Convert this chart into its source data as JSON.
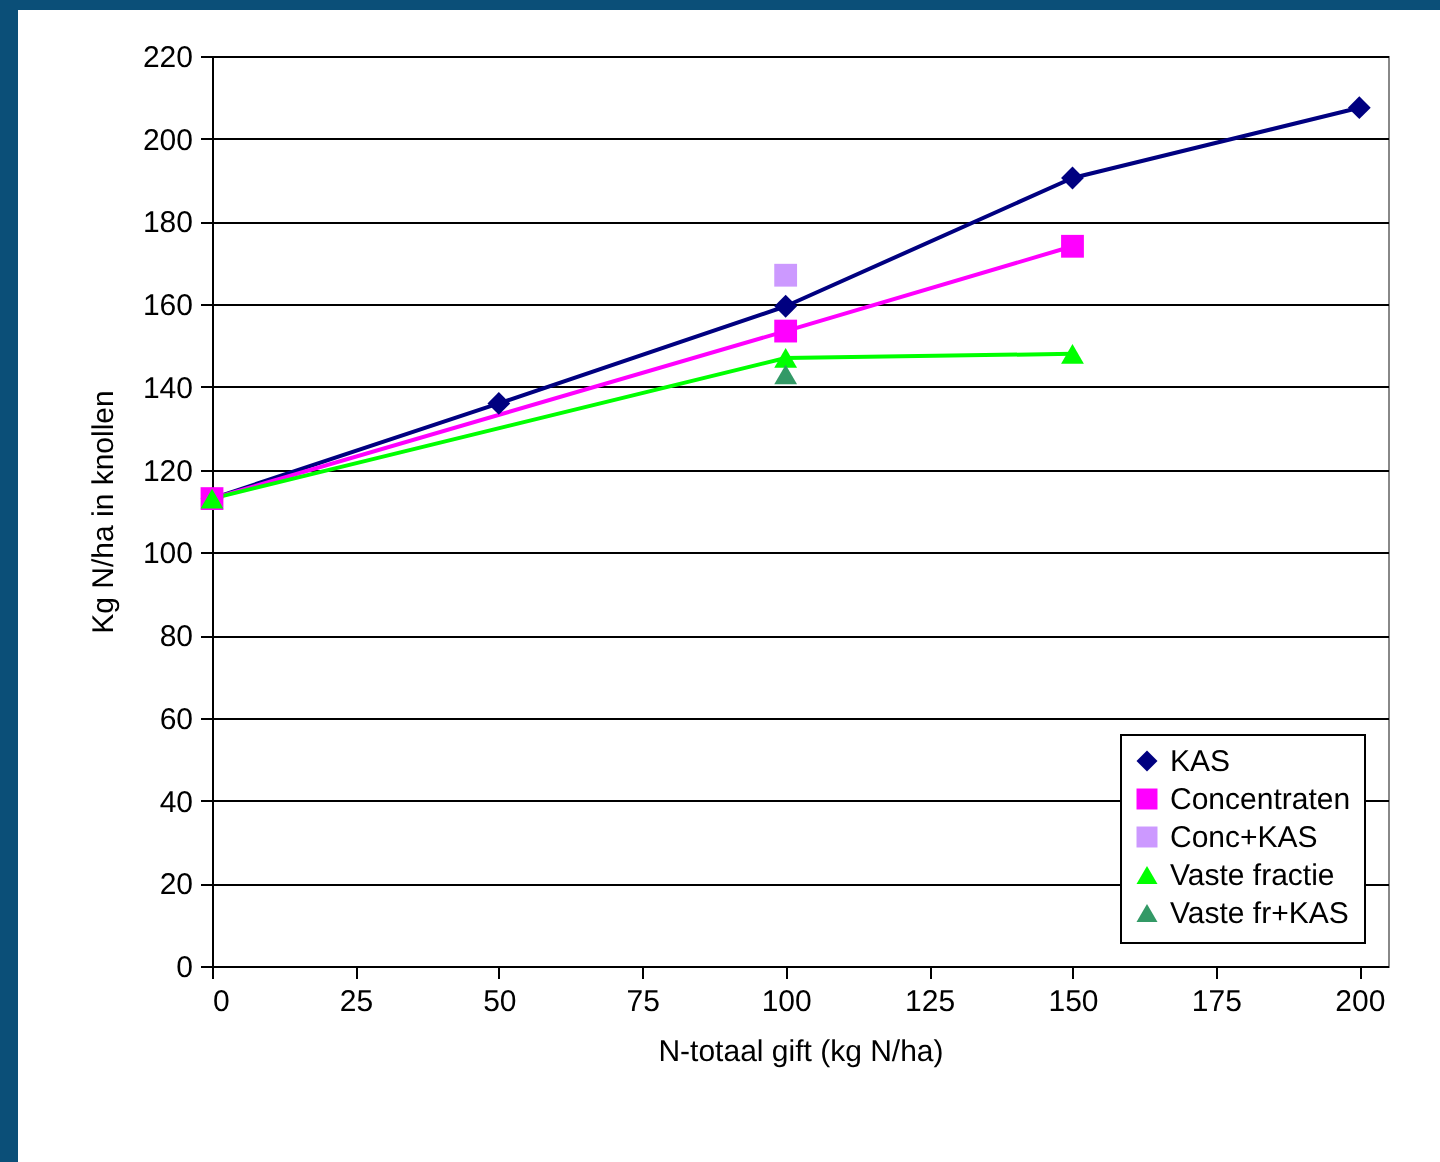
{
  "chart_data": {
    "type": "line",
    "xlabel": "N-totaal gift (kg N/ha)",
    "ylabel": "Kg N/ha in knollen",
    "xlim": [
      0,
      205
    ],
    "xticks": [
      0,
      25,
      50,
      75,
      100,
      125,
      150,
      175,
      200
    ],
    "ylim": [
      0,
      220
    ],
    "yticks": [
      0,
      20,
      40,
      60,
      80,
      100,
      120,
      140,
      160,
      180,
      200,
      220
    ],
    "grid": "y",
    "legend": "bottom right",
    "series": [
      {
        "name": "KAS",
        "type": "line",
        "color": "#000080",
        "marker": "diamond",
        "x": [
          0,
          50,
          100,
          150,
          200
        ],
        "values": [
          113,
          136,
          159.5,
          190.5,
          207.5
        ]
      },
      {
        "name": "Concentraten",
        "type": "line",
        "color": "#ff00ff",
        "marker": "square",
        "x": [
          0,
          100,
          150
        ],
        "values": [
          113,
          153.5,
          174
        ]
      },
      {
        "name": "Conc+KAS",
        "type": "scatter",
        "color": "#cc99ff",
        "marker": "square",
        "x": [
          100
        ],
        "values": [
          167
        ]
      },
      {
        "name": "Vaste fractie",
        "type": "line",
        "color": "#00ff00",
        "marker": "triangle",
        "x": [
          0,
          100,
          150
        ],
        "values": [
          113,
          147,
          148
        ]
      },
      {
        "name": "Vaste fr+KAS",
        "type": "scatter",
        "color": "#339966",
        "marker": "triangle",
        "x": [
          100
        ],
        "values": [
          143
        ]
      }
    ]
  }
}
